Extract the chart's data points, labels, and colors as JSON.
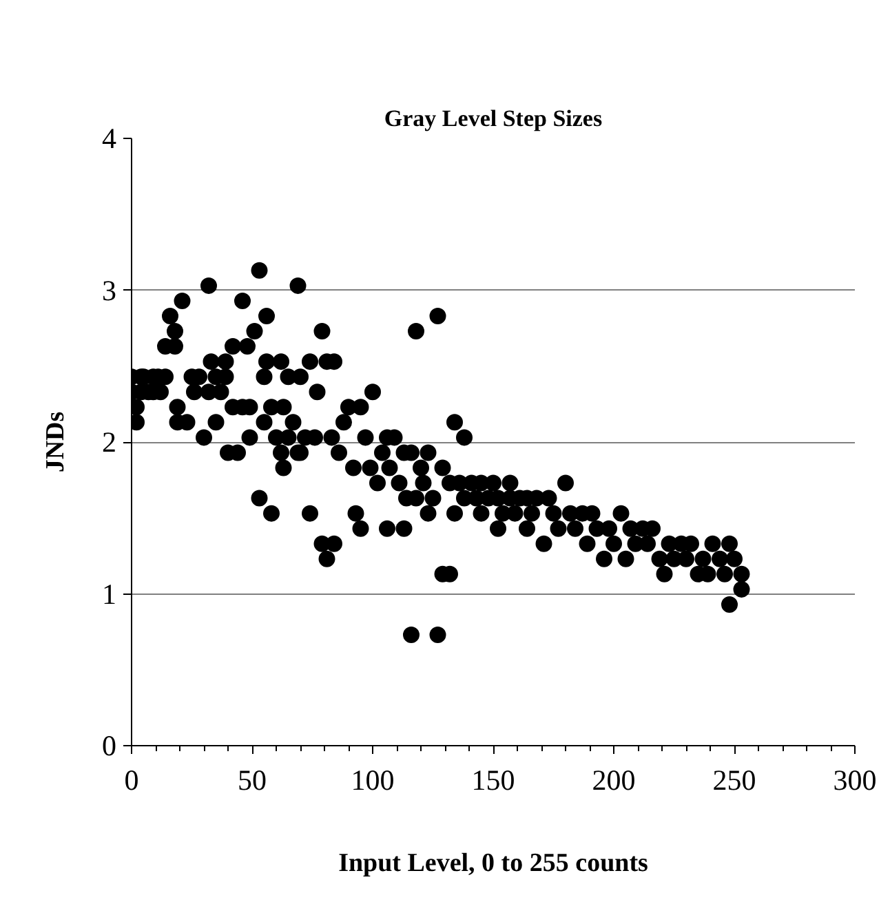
{
  "chart_data": {
    "type": "scatter",
    "title": "Gray Level Step Sizes",
    "xlabel": "Input Level, 0 to 255 counts",
    "ylabel": "JNDs",
    "xlim": [
      0,
      300
    ],
    "ylim": [
      0,
      4
    ],
    "xticks": [
      0,
      50,
      100,
      150,
      200,
      250,
      300
    ],
    "yticks": [
      0,
      1,
      2,
      3,
      4
    ],
    "grid": "y",
    "marker": "circle",
    "series": [
      {
        "color": "#000000",
        "x": [
          0,
          0,
          2,
          2,
          4,
          4,
          5,
          7,
          9,
          9,
          11,
          12,
          14,
          14,
          16,
          18,
          18,
          19,
          19,
          21,
          23,
          25,
          26,
          28,
          30,
          32,
          32,
          33,
          35,
          35,
          37,
          39,
          39,
          40,
          42,
          42,
          44,
          46,
          46,
          48,
          49,
          49,
          51,
          53,
          53,
          55,
          55,
          56,
          56,
          58,
          58,
          60,
          62,
          62,
          63,
          63,
          65,
          65,
          67,
          69,
          69,
          70,
          70,
          72,
          74,
          74,
          76,
          77,
          79,
          79,
          81,
          81,
          83,
          84,
          84,
          86,
          88,
          90,
          92,
          93,
          95,
          95,
          97,
          99,
          100,
          102,
          104,
          106,
          106,
          107,
          109,
          111,
          113,
          113,
          114,
          116,
          116,
          118,
          118,
          120,
          121,
          123,
          123,
          125,
          127,
          127,
          129,
          129,
          132,
          132,
          134,
          134,
          136,
          138,
          138,
          141,
          143,
          145,
          145,
          148,
          150,
          152,
          152,
          154,
          157,
          157,
          159,
          161,
          164,
          164,
          166,
          168,
          171,
          173,
          175,
          177,
          180,
          182,
          184,
          187,
          189,
          191,
          193,
          196,
          198,
          200,
          203,
          205,
          207,
          209,
          212,
          214,
          216,
          219,
          221,
          223,
          225,
          228,
          230,
          232,
          235,
          237,
          239,
          241,
          244,
          246,
          248,
          248,
          250,
          253,
          253
        ],
        "values": [
          2.33,
          2.43,
          2.23,
          2.13,
          2.43,
          2.33,
          2.43,
          2.33,
          2.43,
          2.33,
          2.43,
          2.33,
          2.63,
          2.43,
          2.83,
          2.73,
          2.63,
          2.13,
          2.23,
          2.93,
          2.13,
          2.43,
          2.33,
          2.43,
          2.03,
          3.03,
          2.33,
          2.53,
          2.13,
          2.43,
          2.33,
          2.53,
          2.43,
          1.93,
          2.63,
          2.23,
          1.93,
          2.93,
          2.23,
          2.63,
          2.03,
          2.23,
          2.73,
          1.63,
          3.13,
          2.13,
          2.43,
          2.83,
          2.53,
          1.53,
          2.23,
          2.03,
          2.53,
          1.93,
          2.23,
          1.83,
          2.43,
          2.03,
          2.13,
          1.93,
          3.03,
          2.43,
          1.93,
          2.03,
          1.53,
          2.53,
          2.03,
          2.33,
          1.33,
          2.73,
          1.23,
          2.53,
          2.03,
          1.33,
          2.53,
          1.93,
          2.13,
          2.23,
          1.83,
          1.53,
          1.43,
          2.23,
          2.03,
          1.83,
          2.33,
          1.73,
          1.93,
          1.43,
          2.03,
          1.83,
          2.03,
          1.73,
          1.93,
          1.43,
          1.63,
          0.73,
          1.93,
          2.73,
          1.63,
          1.83,
          1.73,
          1.93,
          1.53,
          1.63,
          0.73,
          2.83,
          1.83,
          1.13,
          1.13,
          1.73,
          2.13,
          1.53,
          1.73,
          2.03,
          1.63,
          1.73,
          1.63,
          1.73,
          1.53,
          1.63,
          1.73,
          1.43,
          1.63,
          1.53,
          1.73,
          1.63,
          1.53,
          1.63,
          1.43,
          1.63,
          1.53,
          1.63,
          1.33,
          1.63,
          1.53,
          1.43,
          1.73,
          1.53,
          1.43,
          1.53,
          1.33,
          1.53,
          1.43,
          1.23,
          1.43,
          1.33,
          1.53,
          1.23,
          1.43,
          1.33,
          1.43,
          1.33,
          1.43,
          1.23,
          1.13,
          1.33,
          1.23,
          1.33,
          1.23,
          1.33,
          1.13,
          1.23,
          1.13,
          1.33,
          1.23,
          1.13,
          1.33,
          0.93,
          1.23,
          1.13,
          1.03
        ]
      }
    ]
  }
}
